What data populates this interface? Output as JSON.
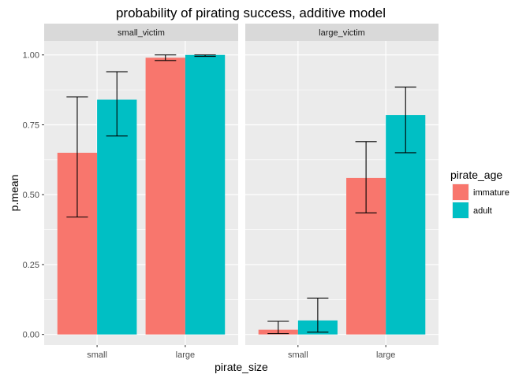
{
  "chart_data": {
    "type": "bar",
    "title": "probability of pirating success, additive model",
    "xlabel": "pirate_size",
    "ylabel": "p.mean",
    "ylim": [
      -0.0375,
      1.05
    ],
    "yticks": [
      "0.00",
      "0.25",
      "0.50",
      "0.75",
      "1.00"
    ],
    "ytick_values": [
      0,
      0.25,
      0.5,
      0.75,
      1.0
    ],
    "categories": [
      "small",
      "large"
    ],
    "facets": [
      {
        "label": "small_victim",
        "series": [
          {
            "name": "immature",
            "values": [
              0.65,
              0.99
            ],
            "lower": [
              0.42,
              0.98
            ],
            "upper": [
              0.85,
              1.0
            ]
          },
          {
            "name": "adult",
            "values": [
              0.84,
              1.0
            ],
            "lower": [
              0.71,
              0.995
            ],
            "upper": [
              0.94,
              1.0
            ]
          }
        ]
      },
      {
        "label": "large_victim",
        "series": [
          {
            "name": "immature",
            "values": [
              0.017,
              0.56
            ],
            "lower": [
              0.003,
              0.435
            ],
            "upper": [
              0.047,
              0.69
            ]
          },
          {
            "name": "adult",
            "values": [
              0.05,
              0.785
            ],
            "lower": [
              0.008,
              0.65
            ],
            "upper": [
              0.13,
              0.885
            ]
          }
        ]
      }
    ],
    "legend": {
      "title": "pirate_age",
      "position": "right",
      "entries": [
        {
          "name": "immature",
          "color": "#F8766D"
        },
        {
          "name": "adult",
          "color": "#00BFC4"
        }
      ]
    },
    "colors": {
      "panel_bg": "#EBEBEB",
      "grid": "#FFFFFF",
      "strip_bg": "#D9D9D9",
      "errorbar": "#000000"
    },
    "grid": true
  }
}
